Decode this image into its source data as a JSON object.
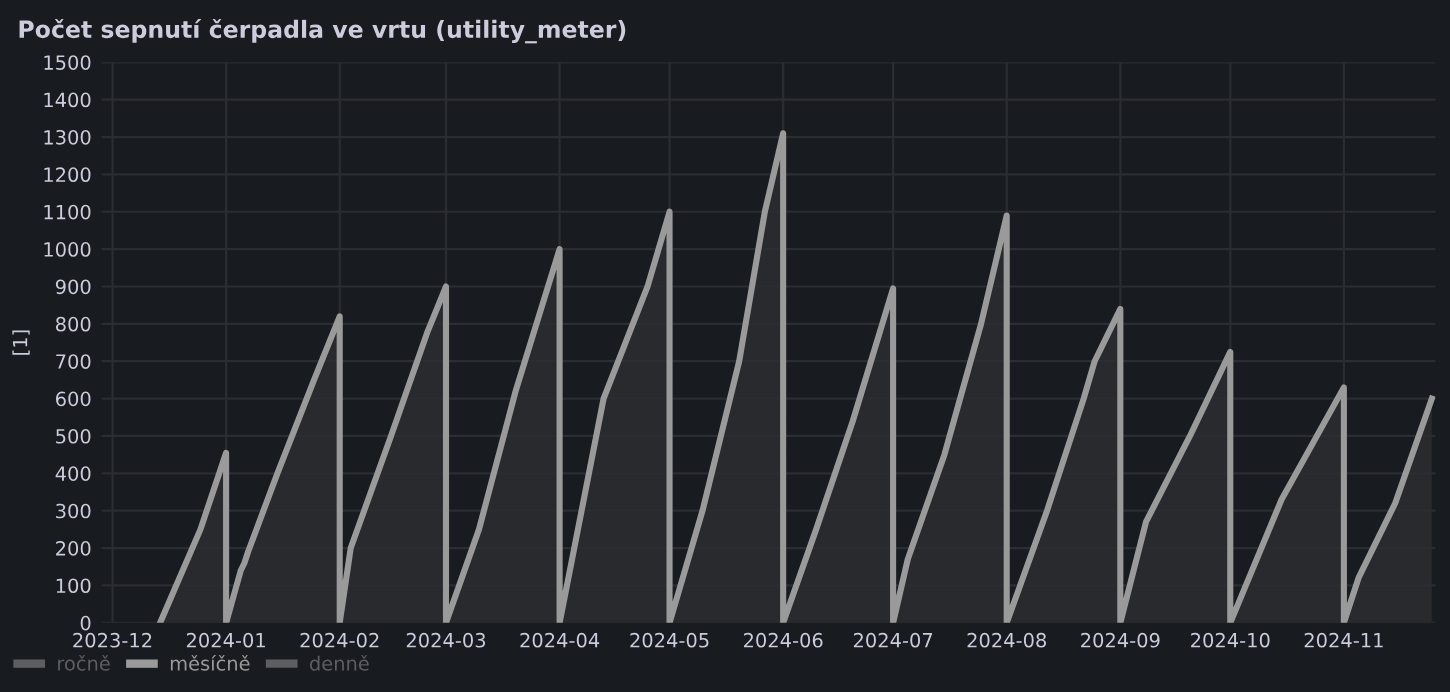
{
  "chart_data": {
    "type": "area",
    "title": "Počet sepnutí čerpadla ve vrtu (utility_meter)",
    "ylabel": "[1]",
    "xlim": [
      "2023-11-28",
      "2024-11-26"
    ],
    "ylim": [
      0,
      1500
    ],
    "xticks": [
      {
        "value": "2023-12-01",
        "label": "2023-12"
      },
      {
        "value": "2024-01-01",
        "label": "2024-01"
      },
      {
        "value": "2024-02-01",
        "label": "2024-02"
      },
      {
        "value": "2024-03-01",
        "label": "2024-03"
      },
      {
        "value": "2024-04-01",
        "label": "2024-04"
      },
      {
        "value": "2024-05-01",
        "label": "2024-05"
      },
      {
        "value": "2024-06-01",
        "label": "2024-06"
      },
      {
        "value": "2024-07-01",
        "label": "2024-07"
      },
      {
        "value": "2024-08-01",
        "label": "2024-08"
      },
      {
        "value": "2024-09-01",
        "label": "2024-09"
      },
      {
        "value": "2024-10-01",
        "label": "2024-10"
      },
      {
        "value": "2024-11-01",
        "label": "2024-11"
      }
    ],
    "yticks": [
      0,
      100,
      200,
      300,
      400,
      500,
      600,
      700,
      800,
      900,
      1000,
      1100,
      1200,
      1300,
      1400,
      1500
    ],
    "grid": true,
    "legend": "bottom left",
    "line_style": "solid",
    "marker": "none",
    "series": [
      {
        "name": "ročně",
        "color": "#5c5e62"
      },
      {
        "name": "měsíčně",
        "color": "#9a9a9a",
        "x": [
          "2023-12-14",
          "2023-12-25",
          "2023-12-31T23:59",
          "2024-01-01",
          "2024-01-05",
          "2024-01-06",
          "2024-01-07",
          "2024-01-15",
          "2024-01-25",
          "2024-01-31T23:59",
          "2024-02-01",
          "2024-02-04",
          "2024-02-15",
          "2024-02-25",
          "2024-02-29T23:59",
          "2024-03-01",
          "2024-03-10",
          "2024-03-20",
          "2024-03-31T23:59",
          "2024-04-01",
          "2024-04-13",
          "2024-04-25",
          "2024-04-30T23:59",
          "2024-05-01",
          "2024-05-10",
          "2024-05-20",
          "2024-05-27",
          "2024-05-31T23:59",
          "2024-06-01",
          "2024-06-10",
          "2024-06-20",
          "2024-06-30T23:59",
          "2024-07-01",
          "2024-07-05",
          "2024-07-15",
          "2024-07-25",
          "2024-07-31T23:59",
          "2024-08-01",
          "2024-08-12",
          "2024-08-22",
          "2024-08-25",
          "2024-08-31T23:59",
          "2024-09-01",
          "2024-09-08",
          "2024-09-20",
          "2024-09-30T23:59",
          "2024-10-01",
          "2024-10-15",
          "2024-10-31T23:59",
          "2024-11-01",
          "2024-11-05",
          "2024-11-15",
          "2024-11-25"
        ],
        "values": [
          0,
          250,
          455,
          0,
          140,
          160,
          190,
          400,
          650,
          820,
          0,
          200,
          500,
          780,
          900,
          0,
          250,
          620,
          1000,
          0,
          600,
          900,
          1100,
          0,
          300,
          700,
          1100,
          1310,
          0,
          250,
          540,
          895,
          0,
          170,
          450,
          800,
          1090,
          0,
          300,
          600,
          700,
          840,
          0,
          270,
          500,
          725,
          0,
          330,
          630,
          0,
          120,
          320,
          600
        ]
      },
      {
        "name": "denně",
        "color": "#5c5e62"
      }
    ]
  }
}
